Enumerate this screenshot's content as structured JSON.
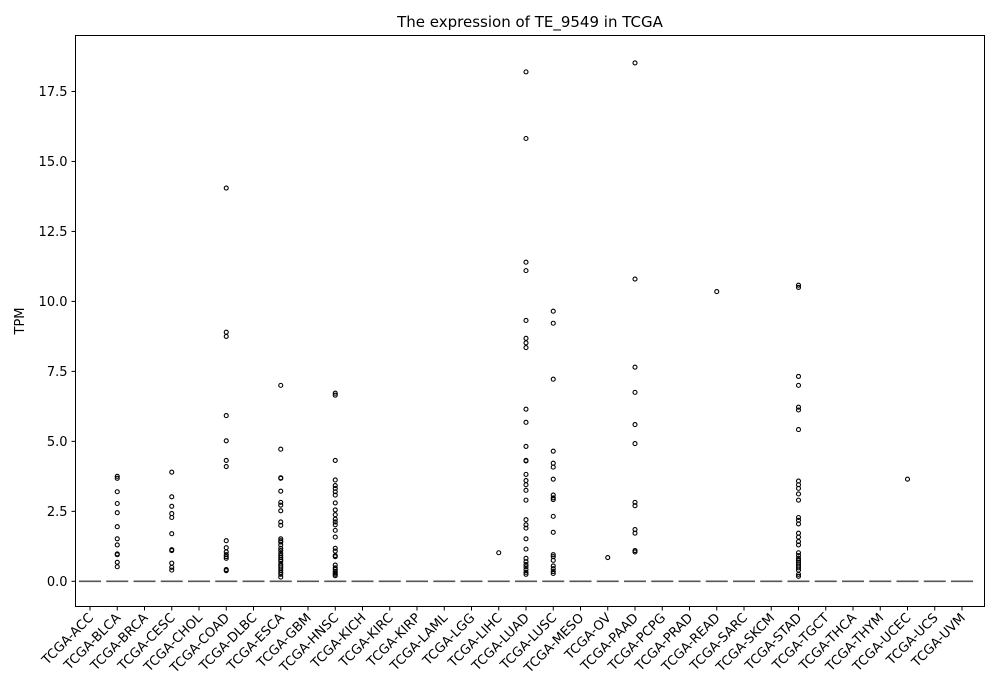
{
  "chart_data": {
    "type": "box",
    "title": "The expression of TE_9549 in TCGA",
    "xlabel": "",
    "ylabel": "TPM",
    "ylim": [
      -0.9,
      19.5
    ],
    "yticks": [
      "0.0",
      "2.5",
      "5.0",
      "7.5",
      "10.0",
      "12.5",
      "15.0",
      "17.5"
    ],
    "ytick_values": [
      0,
      2.5,
      5,
      7.5,
      10,
      12.5,
      15,
      17.5
    ],
    "grid": false,
    "median_color": "#555555",
    "categories": [
      "TCGA-ACC",
      "TCGA-BLCA",
      "TCGA-BRCA",
      "TCGA-CESC",
      "TCGA-CHOL",
      "TCGA-COAD",
      "TCGA-DLBC",
      "TCGA-ESCA",
      "TCGA-GBM",
      "TCGA-HNSC",
      "TCGA-KICH",
      "TCGA-KIRC",
      "TCGA-KIRP",
      "TCGA-LAML",
      "TCGA-LGG",
      "TCGA-LIHC",
      "TCGA-LUAD",
      "TCGA-LUSC",
      "TCGA-MESO",
      "TCGA-OV",
      "TCGA-PAAD",
      "TCGA-PCPG",
      "TCGA-PRAD",
      "TCGA-READ",
      "TCGA-SARC",
      "TCGA-SKCM",
      "TCGA-STAD",
      "TCGA-TGCT",
      "TCGA-THCA",
      "TCGA-THYM",
      "TCGA-UCEC",
      "TCGA-UCS",
      "TCGA-UVM"
    ],
    "medians": [
      0,
      0,
      0,
      0,
      0,
      0,
      0,
      0,
      0,
      0,
      0,
      0,
      0,
      0,
      0,
      0,
      0,
      0,
      0,
      0,
      0,
      0,
      0,
      0,
      0,
      0,
      0,
      0,
      0,
      0,
      0,
      0,
      0
    ],
    "outliers": [
      [],
      [
        3.75,
        3.68,
        3.2,
        2.78,
        2.45,
        1.95,
        1.52,
        1.3,
        0.98,
        0.95,
        0.68,
        0.52
      ],
      [],
      [
        3.9,
        3.02,
        2.68,
        2.42,
        2.28,
        1.7,
        1.13,
        1.1,
        0.65,
        0.5,
        0.4
      ],
      [],
      [
        14.05,
        8.9,
        8.75,
        5.92,
        5.02,
        4.32,
        4.1,
        1.45,
        1.2,
        1.05,
        0.95,
        0.88,
        0.82,
        0.42,
        0.38
      ],
      [],
      [
        7.0,
        4.72,
        3.7,
        3.68,
        3.22,
        2.82,
        2.72,
        2.52,
        2.12,
        2.0,
        1.52,
        1.45,
        1.4,
        1.3,
        1.18,
        1.1,
        1.0,
        0.92,
        0.85,
        0.78,
        0.72,
        0.62,
        0.55,
        0.48,
        0.4,
        0.32,
        0.25,
        0.15
      ],
      [],
      [
        6.72,
        6.65,
        4.32,
        3.62,
        3.42,
        3.32,
        3.2,
        3.08,
        2.8,
        2.55,
        2.38,
        2.22,
        2.12,
        2.02,
        1.82,
        1.58,
        1.18,
        1.08,
        0.92,
        0.88,
        0.58,
        0.48,
        0.42,
        0.35,
        0.3,
        0.25,
        0.2
      ],
      [],
      [],
      [],
      [],
      [],
      [
        1.02
      ],
      [
        18.2,
        15.82,
        11.4,
        11.1,
        9.32,
        8.68,
        8.52,
        8.35,
        6.15,
        5.68,
        4.82,
        4.32,
        4.3,
        3.82,
        3.6,
        3.45,
        3.25,
        2.9,
        2.2,
        2.02,
        1.9,
        1.52,
        1.15,
        0.82,
        0.7,
        0.6,
        0.52,
        0.42,
        0.32,
        0.25
      ],
      [
        9.65,
        9.22,
        7.22,
        4.65,
        4.22,
        4.08,
        3.65,
        3.08,
        2.98,
        2.92,
        2.32,
        1.75,
        0.95,
        0.88,
        0.75,
        0.55,
        0.45,
        0.35,
        0.28
      ],
      [],
      [
        0.85
      ],
      [
        18.52,
        10.8,
        7.65,
        6.75,
        5.6,
        4.92,
        2.82,
        2.7,
        1.85,
        1.72,
        1.1,
        1.05
      ],
      [],
      [],
      [
        10.35
      ],
      [],
      [],
      [
        10.58,
        10.5,
        7.32,
        7.0,
        6.22,
        6.12,
        5.42,
        3.58,
        3.45,
        3.32,
        3.12,
        2.9,
        2.28,
        2.18,
        2.05,
        1.72,
        1.58,
        1.42,
        1.3,
        1.02,
        0.92,
        0.82,
        0.75,
        0.68,
        0.62,
        0.55,
        0.48,
        0.4,
        0.25,
        0.18
      ],
      [],
      [],
      [],
      [
        3.65
      ],
      [],
      []
    ]
  }
}
